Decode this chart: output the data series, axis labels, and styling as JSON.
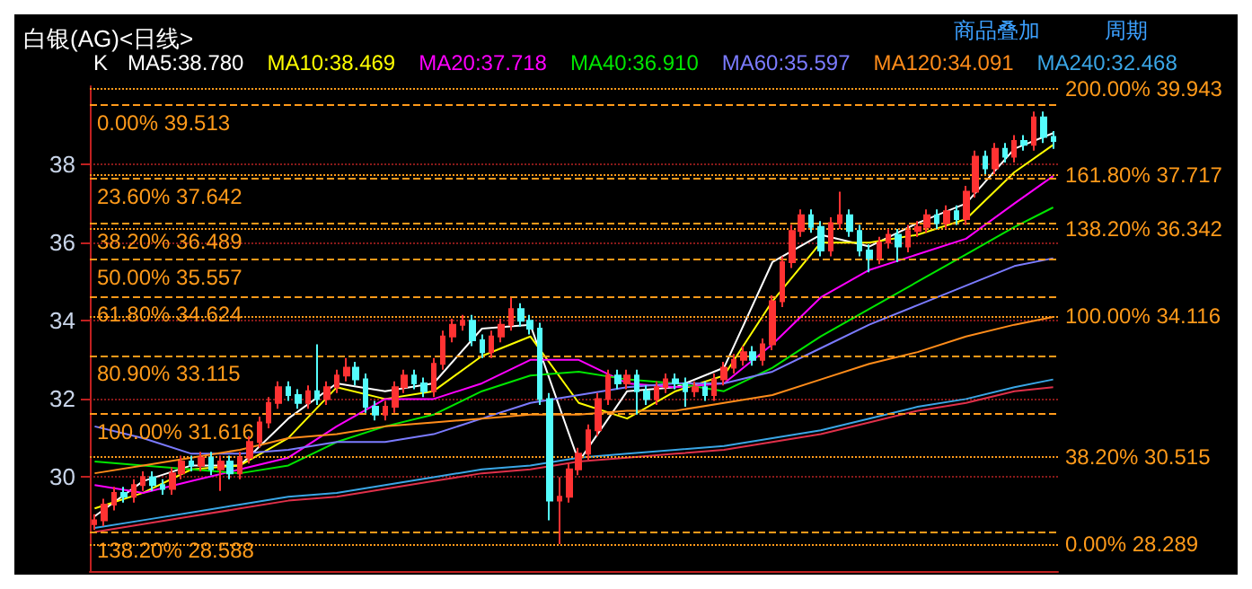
{
  "chart_data": {
    "type": "candlestick",
    "title": "白银(AG)<日线>",
    "categories": [
      null,
      null,
      null,
      null,
      null,
      null,
      null,
      null,
      null,
      null,
      null,
      null,
      null,
      null,
      null,
      null,
      null,
      null,
      null,
      null,
      null,
      null,
      null,
      null,
      null,
      null,
      null,
      null,
      null,
      null,
      null,
      null,
      null,
      null,
      null,
      null,
      null,
      null,
      null,
      null,
      null,
      null,
      null,
      null,
      null,
      null,
      null,
      null,
      null,
      null,
      null,
      null,
      null,
      null,
      null,
      null,
      null,
      null,
      null,
      null,
      null,
      null,
      null,
      null,
      null,
      null,
      null,
      null,
      null,
      null,
      null,
      null,
      null,
      null,
      null,
      null,
      null,
      null,
      null,
      null,
      null,
      null,
      null,
      null,
      null,
      null,
      null,
      null,
      null,
      null,
      null,
      null,
      null,
      null,
      null,
      null,
      null,
      null,
      null,
      null
    ],
    "series": [
      {
        "colors": [
          "#ff3232",
          "#ff3232",
          "#ff3232",
          "#54fcfc",
          "#ff3232",
          "#ff3232",
          "#54fcfc",
          "#54fcfc",
          "#ff3232",
          "#ff3232",
          "#54fcfc",
          "#ff3232",
          "#54fcfc",
          "#ff3232",
          "#54fcfc",
          "#ff3232",
          "#ff3232",
          "#ff3232",
          "#ff3232",
          "#ff3232",
          "#54fcfc",
          "#54fcfc",
          "#ff3232",
          "#54fcfc",
          "#ff3232",
          "#ff3232",
          "#ff3232",
          "#54fcfc",
          "#54fcfc",
          "#54fcfc",
          "#ff3232",
          "#ff3232",
          "#ff3232",
          "#54fcfc",
          "#54fcfc",
          "#ff3232",
          "#ff3232",
          "#ff3232",
          "#ff3232",
          "#54fcfc",
          "#54fcfc",
          "#ff3232",
          "#ff3232",
          "#ff3232",
          "#54fcfc",
          "#54fcfc",
          "#54fcfc",
          "#54fcfc",
          "#ff3232",
          "#ff3232",
          "#ff3232",
          "#ff3232",
          "#ff3232",
          "#ff3232",
          "#54fcfc",
          "#ff3232",
          "#54fcfc",
          "#54fcfc",
          "#ff3232",
          "#ff3232",
          "#54fcfc",
          "#54fcfc",
          "#ff3232",
          "#54fcfc",
          "#ff3232",
          "#ff3232",
          "#ff3232",
          "#ff3232",
          "#54fcfc",
          "#ff3232",
          "#ff3232",
          "#ff3232",
          "#ff3232",
          "#ff3232",
          "#54fcfc",
          "#54fcfc",
          "#ff3232",
          "#ff3232",
          "#54fcfc",
          "#54fcfc",
          "#54fcfc",
          "#ff3232",
          "#ff3232",
          "#54fcfc",
          "#ff3232",
          "#ff3232",
          "#ff3232",
          "#54fcfc",
          "#ff3232",
          "#54fcfc",
          "#ff3232",
          "#ff3232",
          "#54fcfc",
          "#ff3232",
          "#54fcfc",
          "#ff3232",
          "#54fcfc",
          "#ff3232",
          "#54fcfc",
          "#54fcfc"
        ],
        "ohlc": [
          [
            28.8,
            29.05,
            28.65,
            28.9
          ],
          [
            28.9,
            29.45,
            28.75,
            29.3
          ],
          [
            29.3,
            29.75,
            29.15,
            29.6
          ],
          [
            29.6,
            29.75,
            29.35,
            29.5
          ],
          [
            29.5,
            29.95,
            29.35,
            29.8
          ],
          [
            29.8,
            30.15,
            29.65,
            30.0
          ],
          [
            30.0,
            30.15,
            29.65,
            29.8
          ],
          [
            29.8,
            29.95,
            29.55,
            29.7
          ],
          [
            29.7,
            30.25,
            29.55,
            30.1
          ],
          [
            30.1,
            30.55,
            29.95,
            30.4
          ],
          [
            30.4,
            30.55,
            30.15,
            30.3
          ],
          [
            30.3,
            30.65,
            30.15,
            30.5
          ],
          [
            30.5,
            30.65,
            30.05,
            30.2
          ],
          [
            30.2,
            30.55,
            29.65,
            30.4
          ],
          [
            30.4,
            30.55,
            29.95,
            30.1
          ],
          [
            30.1,
            30.65,
            29.95,
            30.5
          ],
          [
            30.5,
            31.05,
            30.35,
            30.9
          ],
          [
            30.9,
            31.55,
            30.75,
            31.4
          ],
          [
            31.4,
            32.05,
            31.25,
            31.9
          ],
          [
            31.9,
            32.45,
            31.75,
            32.3
          ],
          [
            32.3,
            32.45,
            31.95,
            32.1
          ],
          [
            32.1,
            32.25,
            31.75,
            31.9
          ],
          [
            31.9,
            32.35,
            31.75,
            32.2
          ],
          [
            32.2,
            33.4,
            31.85,
            32.0
          ],
          [
            32.0,
            32.45,
            31.85,
            32.3
          ],
          [
            32.3,
            32.75,
            32.15,
            32.6
          ],
          [
            32.6,
            33.05,
            32.45,
            32.8
          ],
          [
            32.8,
            32.95,
            32.35,
            32.5
          ],
          [
            32.5,
            32.65,
            31.65,
            31.8
          ],
          [
            31.8,
            31.95,
            31.45,
            31.6
          ],
          [
            31.6,
            31.95,
            31.45,
            31.8
          ],
          [
            31.8,
            32.45,
            31.65,
            32.3
          ],
          [
            32.3,
            32.75,
            32.15,
            32.6
          ],
          [
            32.6,
            32.75,
            32.25,
            32.4
          ],
          [
            32.4,
            32.55,
            32.05,
            32.2
          ],
          [
            32.2,
            33.05,
            32.05,
            32.9
          ],
          [
            32.9,
            33.75,
            32.75,
            33.6
          ],
          [
            33.6,
            34.05,
            33.45,
            33.9
          ],
          [
            33.9,
            34.15,
            33.75,
            34.0
          ],
          [
            34.0,
            34.15,
            33.35,
            33.5
          ],
          [
            33.5,
            33.65,
            33.05,
            33.2
          ],
          [
            33.2,
            33.75,
            33.05,
            33.6
          ],
          [
            33.6,
            34.05,
            33.45,
            33.9
          ],
          [
            33.9,
            34.584,
            33.75,
            34.3
          ],
          [
            34.3,
            34.45,
            33.85,
            34.0
          ],
          [
            34.0,
            34.15,
            33.65,
            33.8
          ],
          [
            33.8,
            33.95,
            31.85,
            32.0
          ],
          [
            32.0,
            32.15,
            28.9,
            29.4
          ],
          [
            29.4,
            30.0,
            28.289,
            29.5
          ],
          [
            29.5,
            30.35,
            29.35,
            30.2
          ],
          [
            30.2,
            30.75,
            30.05,
            30.6
          ],
          [
            30.6,
            31.35,
            30.45,
            31.2
          ],
          [
            31.2,
            32.15,
            31.05,
            32.0
          ],
          [
            32.0,
            32.75,
            31.85,
            32.6
          ],
          [
            32.6,
            32.75,
            32.25,
            32.4
          ],
          [
            32.4,
            32.75,
            32.25,
            32.6
          ],
          [
            32.6,
            32.75,
            31.6,
            32.2
          ],
          [
            32.2,
            32.35,
            31.85,
            32.0
          ],
          [
            32.0,
            32.45,
            31.85,
            32.3
          ],
          [
            32.3,
            32.65,
            32.15,
            32.5
          ],
          [
            32.5,
            32.65,
            32.25,
            32.4
          ],
          [
            32.4,
            32.55,
            31.8,
            32.2
          ],
          [
            32.2,
            32.45,
            32.05,
            32.3
          ],
          [
            32.3,
            32.45,
            31.95,
            32.1
          ],
          [
            32.1,
            32.65,
            31.95,
            32.5
          ],
          [
            32.5,
            32.95,
            32.35,
            32.8
          ],
          [
            32.8,
            33.15,
            32.65,
            33.0
          ],
          [
            33.0,
            33.35,
            32.85,
            33.2
          ],
          [
            33.2,
            33.35,
            32.85,
            33.0
          ],
          [
            33.0,
            33.55,
            32.85,
            33.4
          ],
          [
            33.4,
            34.65,
            33.25,
            34.5
          ],
          [
            34.5,
            35.65,
            34.35,
            35.5
          ],
          [
            35.5,
            36.45,
            35.35,
            36.3
          ],
          [
            36.3,
            36.85,
            36.15,
            36.7
          ],
          [
            36.7,
            36.85,
            36.25,
            36.4
          ],
          [
            36.4,
            36.55,
            35.65,
            35.8
          ],
          [
            35.8,
            36.65,
            35.65,
            36.5
          ],
          [
            36.5,
            37.303,
            36.35,
            36.7
          ],
          [
            36.7,
            36.85,
            36.15,
            36.3
          ],
          [
            36.3,
            36.45,
            35.65,
            35.8
          ],
          [
            35.8,
            35.95,
            35.241,
            35.6
          ],
          [
            35.6,
            36.15,
            35.45,
            36.0
          ],
          [
            36.0,
            36.35,
            35.85,
            36.2
          ],
          [
            36.2,
            36.35,
            35.5,
            35.9
          ],
          [
            35.9,
            36.45,
            35.75,
            36.3
          ],
          [
            36.3,
            36.55,
            36.15,
            36.4
          ],
          [
            36.4,
            36.85,
            36.25,
            36.7
          ],
          [
            36.7,
            36.85,
            36.35,
            36.5
          ],
          [
            36.5,
            36.95,
            36.35,
            36.8
          ],
          [
            36.8,
            36.95,
            36.45,
            36.6
          ],
          [
            36.6,
            37.45,
            36.45,
            37.3
          ],
          [
            37.3,
            38.35,
            37.15,
            38.2
          ],
          [
            38.2,
            38.35,
            37.75,
            37.9
          ],
          [
            37.9,
            38.55,
            37.75,
            38.4
          ],
          [
            38.4,
            38.55,
            38.05,
            38.2
          ],
          [
            38.2,
            38.75,
            38.05,
            38.6
          ],
          [
            38.6,
            38.75,
            38.35,
            38.5
          ],
          [
            38.5,
            39.35,
            38.35,
            39.2
          ],
          [
            39.2,
            39.35,
            38.55,
            38.7
          ],
          [
            38.7,
            38.85,
            38.4,
            38.6
          ]
        ]
      },
      {
        "type": "line",
        "name": "MA5:38.780",
        "color": "#ffffff",
        "values": [
          29.0,
          null,
          null,
          null,
          null,
          29.9,
          null,
          null,
          null,
          null,
          30.3,
          null,
          null,
          null,
          null,
          30.3,
          null,
          null,
          null,
          null,
          31.5,
          null,
          null,
          null,
          null,
          32.4,
          null,
          null,
          null,
          null,
          32.2,
          null,
          null,
          null,
          null,
          32.4,
          null,
          null,
          null,
          null,
          33.8,
          null,
          null,
          null,
          null,
          33.9,
          null,
          null,
          null,
          null,
          30.4,
          null,
          null,
          null,
          null,
          32.2,
          null,
          null,
          null,
          null,
          32.3,
          null,
          null,
          null,
          null,
          32.8,
          null,
          null,
          null,
          null,
          35.5,
          null,
          null,
          null,
          null,
          36.2,
          null,
          null,
          null,
          null,
          35.9,
          null,
          null,
          null,
          null,
          36.5,
          null,
          null,
          null,
          null,
          37.0,
          null,
          null,
          null,
          null,
          38.4,
          null,
          null,
          null,
          38.8
        ]
      },
      {
        "type": "line",
        "name": "MA10:38.469",
        "color": "#ffff00",
        "values": [
          29.2,
          null,
          null,
          null,
          null,
          29.6,
          null,
          null,
          null,
          null,
          30.2,
          null,
          null,
          null,
          null,
          30.3,
          null,
          null,
          null,
          null,
          31.0,
          null,
          null,
          null,
          null,
          32.3,
          null,
          null,
          null,
          null,
          32.0,
          null,
          null,
          null,
          null,
          32.2,
          null,
          null,
          null,
          null,
          33.1,
          null,
          null,
          null,
          null,
          33.6,
          null,
          null,
          null,
          null,
          31.9,
          null,
          null,
          null,
          null,
          31.5,
          null,
          null,
          null,
          null,
          32.2,
          null,
          null,
          null,
          null,
          32.6,
          null,
          null,
          null,
          null,
          34.5,
          null,
          null,
          null,
          null,
          36.0,
          null,
          null,
          null,
          null,
          36.0,
          null,
          null,
          null,
          null,
          36.2,
          null,
          null,
          null,
          null,
          36.6,
          null,
          null,
          null,
          null,
          37.8,
          null,
          null,
          null,
          38.5
        ]
      },
      {
        "type": "line",
        "name": "MA20:37.718",
        "color": "#ff00ff",
        "values": [
          29.8,
          null,
          null,
          null,
          null,
          29.6,
          null,
          null,
          null,
          null,
          29.9,
          null,
          null,
          null,
          null,
          30.2,
          null,
          null,
          null,
          null,
          30.5,
          null,
          null,
          null,
          null,
          31.3,
          null,
          null,
          null,
          null,
          32.0,
          null,
          null,
          null,
          null,
          32.0,
          null,
          null,
          null,
          null,
          32.4,
          null,
          null,
          null,
          null,
          33.0,
          null,
          null,
          null,
          null,
          33.0,
          null,
          null,
          null,
          null,
          32.4,
          null,
          null,
          null,
          null,
          32.3,
          null,
          null,
          null,
          null,
          32.4,
          null,
          null,
          null,
          null,
          33.4,
          null,
          null,
          null,
          null,
          34.6,
          null,
          null,
          null,
          null,
          35.3,
          null,
          null,
          null,
          null,
          35.7,
          null,
          null,
          null,
          null,
          36.1,
          null,
          null,
          null,
          null,
          37.0,
          null,
          null,
          null,
          37.7
        ]
      },
      {
        "type": "line",
        "name": "MA40:36.910",
        "color": "#00e600",
        "values": [
          30.4,
          null,
          null,
          null,
          null,
          30.3,
          null,
          null,
          null,
          null,
          30.2,
          null,
          null,
          null,
          null,
          30.1,
          null,
          null,
          null,
          null,
          30.3,
          null,
          null,
          null,
          null,
          30.9,
          null,
          null,
          null,
          null,
          31.3,
          null,
          null,
          null,
          null,
          31.6,
          null,
          null,
          null,
          null,
          32.2,
          null,
          null,
          null,
          null,
          32.6,
          null,
          null,
          null,
          null,
          32.7,
          null,
          null,
          null,
          null,
          32.5,
          null,
          null,
          null,
          null,
          32.4,
          null,
          null,
          null,
          null,
          32.2,
          null,
          null,
          null,
          null,
          32.8,
          null,
          null,
          null,
          null,
          33.6,
          null,
          null,
          null,
          null,
          34.3,
          null,
          null,
          null,
          null,
          35.0,
          null,
          null,
          null,
          null,
          35.7,
          null,
          null,
          null,
          null,
          36.4,
          null,
          null,
          null,
          36.9
        ]
      },
      {
        "type": "line",
        "name": "MA60:35.597",
        "color": "#7b7bff",
        "values": [
          31.3,
          null,
          null,
          null,
          null,
          31.0,
          null,
          null,
          null,
          null,
          30.6,
          null,
          null,
          null,
          null,
          30.6,
          null,
          null,
          null,
          null,
          30.7,
          null,
          null,
          null,
          null,
          30.9,
          null,
          null,
          null,
          null,
          30.9,
          null,
          null,
          null,
          null,
          31.1,
          null,
          null,
          null,
          null,
          31.5,
          null,
          null,
          null,
          null,
          31.9,
          null,
          null,
          null,
          null,
          32.1,
          null,
          null,
          null,
          null,
          32.3,
          null,
          null,
          null,
          null,
          32.4,
          null,
          null,
          null,
          null,
          32.4,
          null,
          null,
          null,
          null,
          32.7,
          null,
          null,
          null,
          null,
          33.3,
          null,
          null,
          null,
          null,
          33.9,
          null,
          null,
          null,
          null,
          34.4,
          null,
          null,
          null,
          null,
          34.9,
          null,
          null,
          null,
          null,
          35.4,
          null,
          null,
          null,
          35.6
        ]
      },
      {
        "type": "line",
        "name": "MA120:34.091",
        "color": "#ff8c1a",
        "values": [
          30.1,
          null,
          null,
          null,
          null,
          30.3,
          null,
          null,
          null,
          null,
          30.5,
          null,
          null,
          null,
          null,
          30.7,
          null,
          null,
          null,
          null,
          31.0,
          null,
          null,
          null,
          null,
          31.1,
          null,
          null,
          null,
          null,
          31.3,
          null,
          null,
          null,
          null,
          31.4,
          null,
          null,
          null,
          null,
          31.5,
          null,
          null,
          null,
          null,
          31.6,
          null,
          null,
          null,
          null,
          31.6,
          null,
          null,
          null,
          null,
          31.7,
          null,
          null,
          null,
          null,
          31.7,
          null,
          null,
          null,
          null,
          31.9,
          null,
          null,
          null,
          null,
          32.1,
          null,
          null,
          null,
          null,
          32.5,
          null,
          null,
          null,
          null,
          32.9,
          null,
          null,
          null,
          null,
          33.2,
          null,
          null,
          null,
          null,
          33.6,
          null,
          null,
          null,
          null,
          33.9,
          null,
          null,
          null,
          34.1
        ]
      },
      {
        "type": "line",
        "name": "MA240:32.468",
        "color": "#3aa6e6",
        "values": [
          28.7,
          null,
          null,
          null,
          null,
          28.9,
          null,
          null,
          null,
          null,
          29.1,
          null,
          null,
          null,
          null,
          29.3,
          null,
          null,
          null,
          null,
          29.5,
          null,
          null,
          null,
          null,
          29.6,
          null,
          null,
          null,
          null,
          29.8,
          null,
          null,
          null,
          null,
          30.0,
          null,
          null,
          null,
          null,
          30.2,
          null,
          null,
          null,
          null,
          30.3,
          null,
          null,
          null,
          null,
          30.5,
          null,
          null,
          null,
          null,
          30.6,
          null,
          null,
          null,
          null,
          30.7,
          null,
          null,
          null,
          null,
          30.8,
          null,
          null,
          null,
          null,
          31.0,
          null,
          null,
          null,
          null,
          31.2,
          null,
          null,
          null,
          null,
          31.5,
          null,
          null,
          null,
          null,
          31.8,
          null,
          null,
          null,
          null,
          32.0,
          null,
          null,
          null,
          null,
          32.3,
          null,
          null,
          null,
          32.5
        ]
      },
      {
        "type": "line",
        "color": "#e0304a",
        "values": [
          28.6,
          null,
          null,
          null,
          null,
          28.8,
          null,
          null,
          null,
          null,
          29.0,
          null,
          null,
          null,
          null,
          29.2,
          null,
          null,
          null,
          null,
          29.4,
          null,
          null,
          null,
          null,
          29.5,
          null,
          null,
          null,
          null,
          29.7,
          null,
          null,
          null,
          null,
          29.9,
          null,
          null,
          null,
          null,
          30.1,
          null,
          null,
          null,
          null,
          30.2,
          null,
          null,
          null,
          null,
          30.4,
          null,
          null,
          null,
          null,
          30.5,
          null,
          null,
          null,
          null,
          30.6,
          null,
          null,
          null,
          null,
          30.7,
          null,
          null,
          null,
          null,
          30.9,
          null,
          null,
          null,
          null,
          31.1,
          null,
          null,
          null,
          null,
          31.4,
          null,
          null,
          null,
          null,
          31.7,
          null,
          null,
          null,
          null,
          31.9,
          null,
          null,
          null,
          null,
          32.2,
          null,
          null,
          null,
          32.3
        ]
      }
    ],
    "ylim": [
      27.6,
      40
    ],
    "yticks": [
      30,
      32,
      34,
      36,
      38
    ],
    "grid": "y",
    "tick_labels": "y",
    "legend": "top",
    "line_style": "solid",
    "ref_lines": [
      {
        "axis": "y",
        "value": 39.513,
        "label": "0.00% 39.513",
        "color": "#ff9a1a",
        "line_style": "dashed"
      },
      {
        "axis": "y",
        "value": 37.642,
        "label": "23.60% 37.642",
        "color": "#ff9a1a",
        "line_style": "dashed"
      },
      {
        "axis": "y",
        "value": 36.489,
        "label": "38.20% 36.489",
        "color": "#ff9a1a",
        "line_style": "dashed"
      },
      {
        "axis": "y",
        "value": 35.557,
        "label": "50.00% 35.557",
        "color": "#ff9a1a",
        "line_style": "dashed"
      },
      {
        "axis": "y",
        "value": 34.624,
        "label": "61.80% 34.624",
        "color": "#ff9a1a",
        "line_style": "dashed"
      },
      {
        "axis": "y",
        "value": 33.115,
        "label": "80.90% 33.115",
        "color": "#ff9a1a",
        "line_style": "dashed"
      },
      {
        "axis": "y",
        "value": 31.616,
        "label": "100.00% 31.616",
        "color": "#ff9a1a",
        "line_style": "dashed"
      },
      {
        "axis": "y",
        "value": 28.588,
        "label": "138.20% 28.588",
        "color": "#ff9a1a",
        "line_style": "dashed"
      },
      {
        "axis": "y",
        "value": 39.943,
        "label": "200.00% 39.943",
        "color": "#ff9a1a",
        "line_style": "dotted"
      },
      {
        "axis": "y",
        "value": 37.717,
        "label": "161.80% 37.717",
        "color": "#ff9a1a",
        "line_style": "dotted"
      },
      {
        "axis": "y",
        "value": 36.342,
        "label": "138.20% 36.342",
        "color": "#ff9a1a",
        "line_style": "dotted"
      },
      {
        "axis": "y",
        "value": 34.116,
        "label": "100.00% 34.116",
        "color": "#ff9a1a",
        "line_style": "dotted"
      },
      {
        "axis": "y",
        "value": 30.515,
        "label": "38.20% 30.515",
        "color": "#ff9a1a",
        "line_style": "dotted"
      },
      {
        "axis": "y",
        "value": 28.289,
        "label": "0.00% 28.289",
        "color": "#ff9a1a",
        "line_style": "dotted"
      }
    ],
    "annotations": [
      "K",
      "商品叠加",
      "周期"
    ]
  }
}
